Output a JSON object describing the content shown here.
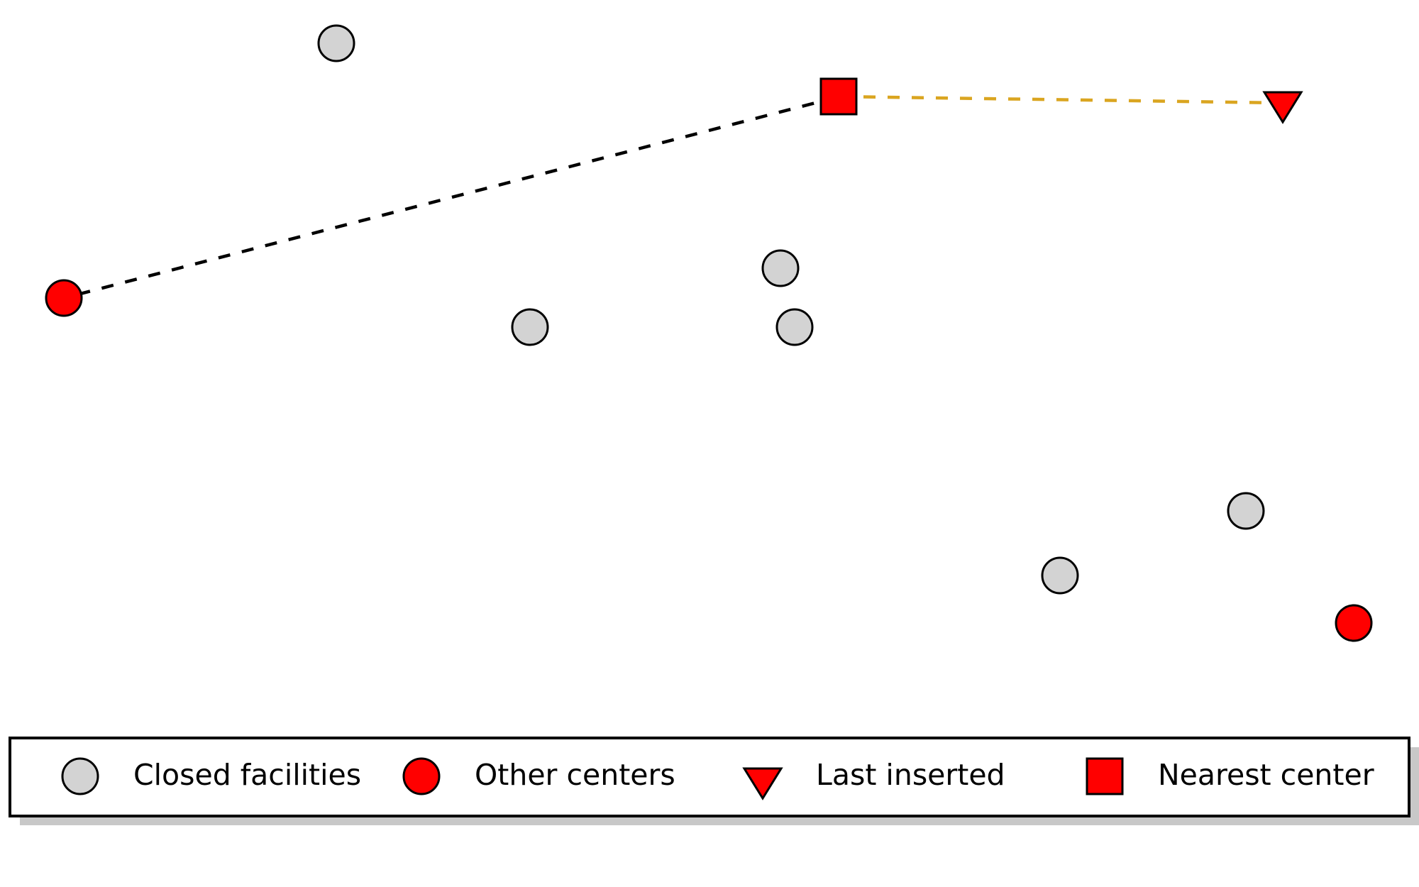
{
  "colors": {
    "closed_fill": "#d3d3d3",
    "center_fill": "#ff0000",
    "outline": "#000000",
    "link_to_other_center": "#000000",
    "link_to_last_inserted": "#daa520",
    "legend_shadow": "#c8c8c8",
    "background": "#ffffff"
  },
  "points": {
    "closed_facilities": [
      "closed-facility-1",
      "closed-facility-2",
      "closed-facility-3",
      "closed-facility-4",
      "closed-facility-5",
      "closed-facility-6"
    ],
    "other_centers": [
      "other-center-1",
      "other-center-2"
    ],
    "last_inserted": "last-inserted-marker",
    "nearest_center": "nearest-center-marker"
  },
  "links": [
    {
      "from": "nearest-center-marker",
      "to": "other-center-1",
      "style": "black-dashed"
    },
    {
      "from": "nearest-center-marker",
      "to": "last-inserted-marker",
      "style": "gold-dashed"
    }
  ],
  "legend": {
    "items": [
      {
        "marker": "grey-circle-icon",
        "label": "Closed facilities"
      },
      {
        "marker": "red-circle-icon",
        "label": "Other centers"
      },
      {
        "marker": "red-triangle-down-icon",
        "label": "Last inserted"
      },
      {
        "marker": "red-square-icon",
        "label": "Nearest center"
      }
    ]
  }
}
